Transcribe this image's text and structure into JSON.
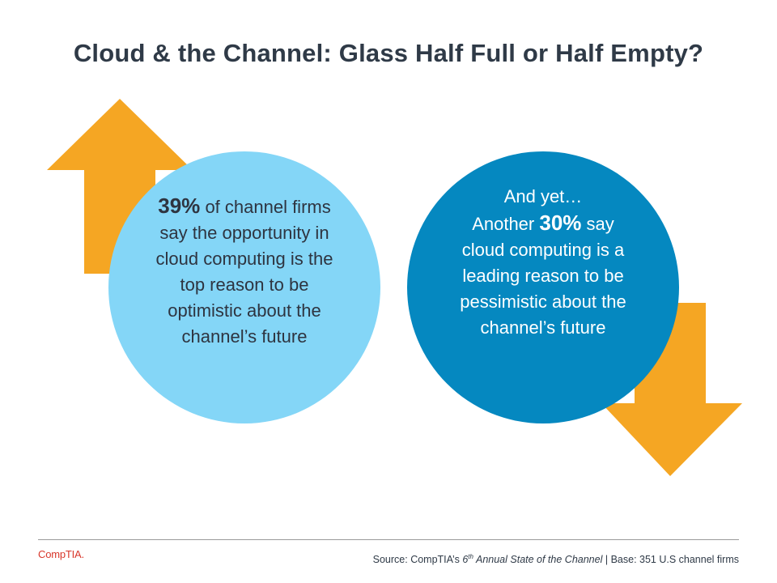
{
  "title": "Cloud & the Channel: Glass Half Full or Half Empty?",
  "left_circle": {
    "stat": "39%",
    "text": "of channel firms say the opportunity in cloud computing is the top reason to be optimistic about the channel’s future"
  },
  "right_circle": {
    "intro": "And yet…",
    "prefix": "Another",
    "stat": "30%",
    "text": "say cloud computing is a leading reason to be pessimistic about the channel’s future"
  },
  "footer": {
    "logo": "CompTIA.",
    "source_prefix": "Source: CompTIA’s",
    "edition_number": "6",
    "edition_suffix": "th",
    "report_name": "Annual State of the Channel",
    "separator": "|",
    "base": "Base: 351 U.S channel firms"
  },
  "colors": {
    "arrow": "#f5a623",
    "left_circle": "#84d6f7",
    "right_circle": "#0588c0",
    "title": "#2f3a47",
    "logo": "#d8372b"
  },
  "icons": {
    "up_arrow": "arrow-up-icon",
    "down_arrow": "arrow-down-icon"
  }
}
